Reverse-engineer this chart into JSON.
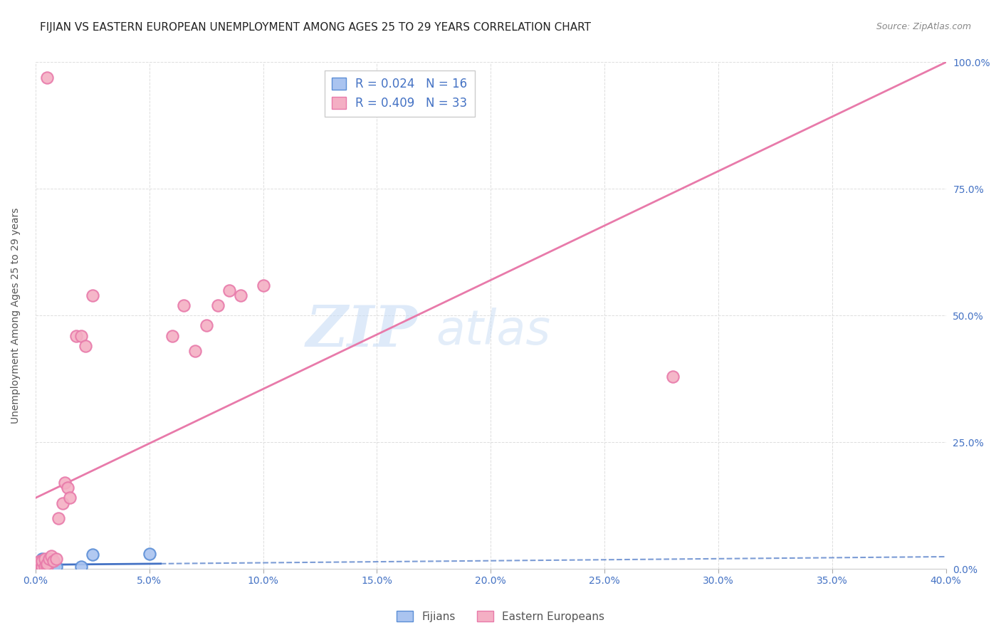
{
  "title": "FIJIAN VS EASTERN EUROPEAN UNEMPLOYMENT AMONG AGES 25 TO 29 YEARS CORRELATION CHART",
  "source": "Source: ZipAtlas.com",
  "ylabel": "Unemployment Among Ages 25 to 29 years",
  "xlim": [
    0.0,
    0.4
  ],
  "ylim": [
    0.0,
    1.0
  ],
  "xticks": [
    0.0,
    0.05,
    0.1,
    0.15,
    0.2,
    0.25,
    0.3,
    0.35,
    0.4
  ],
  "yticks": [
    0.0,
    0.25,
    0.5,
    0.75,
    1.0
  ],
  "fijians_x": [
    0.001,
    0.002,
    0.002,
    0.003,
    0.003,
    0.004,
    0.005,
    0.005,
    0.006,
    0.007,
    0.008,
    0.008,
    0.009,
    0.02,
    0.025,
    0.05
  ],
  "fijians_y": [
    0.005,
    0.005,
    0.01,
    0.01,
    0.02,
    0.005,
    0.005,
    0.015,
    0.01,
    0.005,
    0.005,
    0.015,
    0.005,
    0.005,
    0.028,
    0.03
  ],
  "eastern_x": [
    0.001,
    0.001,
    0.002,
    0.002,
    0.003,
    0.003,
    0.004,
    0.004,
    0.005,
    0.005,
    0.006,
    0.007,
    0.008,
    0.009,
    0.01,
    0.012,
    0.013,
    0.014,
    0.015,
    0.018,
    0.02,
    0.022,
    0.025,
    0.06,
    0.065,
    0.07,
    0.075,
    0.08,
    0.085,
    0.09,
    0.1,
    0.28,
    0.005
  ],
  "eastern_y": [
    0.005,
    0.01,
    0.01,
    0.015,
    0.005,
    0.015,
    0.005,
    0.02,
    0.005,
    0.01,
    0.02,
    0.025,
    0.015,
    0.02,
    0.1,
    0.13,
    0.17,
    0.16,
    0.14,
    0.46,
    0.46,
    0.44,
    0.54,
    0.46,
    0.52,
    0.43,
    0.48,
    0.52,
    0.55,
    0.54,
    0.56,
    0.38,
    0.97
  ],
  "fijians_color": "#aac4f0",
  "eastern_color": "#f4afc4",
  "fijians_edge_color": "#5b8ed6",
  "eastern_edge_color": "#e87aaa",
  "fijians_line_color": "#4472c4",
  "eastern_line_color": "#e87aaa",
  "fijians_R": 0.024,
  "fijians_N": 16,
  "eastern_R": 0.409,
  "eastern_N": 33,
  "watermark_zip": "ZIP",
  "watermark_atlas": "atlas",
  "background_color": "#ffffff",
  "title_color": "#222222",
  "axis_label_color": "#555555",
  "tick_color": "#4472c4",
  "grid_color": "#dddddd",
  "title_fontsize": 11,
  "source_fontsize": 9,
  "legend_fontsize": 12,
  "eastern_line_intercept": 0.14,
  "eastern_line_slope": 2.15,
  "fijian_line_intercept": 0.008,
  "fijian_line_slope": 0.04
}
